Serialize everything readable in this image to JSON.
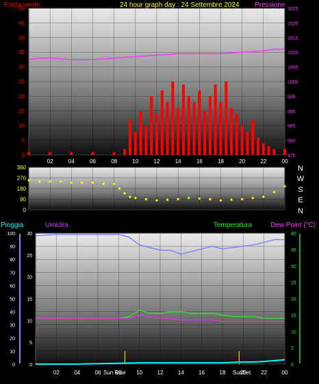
{
  "header": {
    "left_label": "Forza vento",
    "title": "24 hour graph day : 24 Settembre 2024",
    "right_label": "Pressione"
  },
  "colors": {
    "wind": "#ff0000",
    "gust_green": "#00cc00",
    "wind_white": "#ffffff",
    "pressure": "#ff33ff",
    "direction": "#ffff00",
    "humidity": "#7a86ff",
    "temperature": "#33dd33",
    "dewpoint": "#dd33dd",
    "rain": "#00ffff",
    "title_yellow": "#ffff00",
    "label_red": "#ff0000",
    "label_cyan": "#00ffff",
    "label_green": "#00ff00",
    "label_purple": "#cc33ff",
    "label_magenta": "#ff33ff"
  },
  "compass": [
    "N",
    "W",
    "S",
    "E",
    "N"
  ],
  "bottom_labels": {
    "rain": "Pioggia",
    "humidity": "Umidita",
    "temperature": "Temperatura",
    "dewpoint": "Dew Point (°C)"
  },
  "time_ticks": [
    "02",
    "04",
    "06",
    "08",
    "10",
    "12",
    "14",
    "16",
    "18",
    "20",
    "22",
    "00"
  ],
  "sun_labels": {
    "sunrise": "Sun Rise",
    "sunset": "SunSet"
  },
  "chart_data": [
    {
      "type": "line",
      "title": "24 hour graph day : 24 Settembre 2024",
      "x_axis": "hour of day",
      "series": [
        {
          "name": "Forza vento",
          "axis": "left",
          "x": [
            0,
            2,
            4,
            6,
            8,
            9,
            9.5,
            10,
            10.5,
            11,
            11.5,
            12,
            12.5,
            13,
            13.5,
            14,
            14.5,
            15,
            15.5,
            16,
            16.5,
            17,
            17.5,
            18,
            18.5,
            19,
            19.5,
            20,
            20.5,
            21,
            21.5,
            22,
            22.5,
            23,
            24
          ],
          "values": [
            1,
            1,
            1,
            1,
            1,
            2,
            12,
            8,
            15,
            10,
            20,
            14,
            22,
            18,
            25,
            16,
            24,
            20,
            18,
            22,
            15,
            20,
            24,
            18,
            25,
            16,
            14,
            10,
            8,
            12,
            6,
            4,
            3,
            2,
            2
          ]
        },
        {
          "name": "Pressione",
          "axis": "right",
          "x": [
            0,
            1,
            2,
            4,
            6,
            8,
            10,
            12,
            14,
            16,
            18,
            20,
            22,
            23,
            24
          ],
          "values": [
            1007.5,
            1008,
            1008,
            1007.5,
            1007.5,
            1008,
            1008.5,
            1009,
            1009.5,
            1009.5,
            1009.5,
            1010,
            1010.5,
            1011,
            1011
          ]
        }
      ],
      "y_left": {
        "ticks": [
          0,
          5,
          10,
          15,
          20,
          25,
          30,
          35,
          40,
          45,
          50
        ],
        "range": [
          0,
          50
        ]
      },
      "y_right": {
        "ticks": [
          975,
          980,
          985,
          990,
          995,
          1000,
          1005,
          1010,
          1015,
          1020,
          1025
        ],
        "range": [
          975,
          1025
        ]
      }
    },
    {
      "type": "scatter",
      "series": [
        {
          "x": [
            0,
            1,
            2,
            3,
            4,
            5,
            6,
            7,
            8,
            8.5,
            9,
            9.5,
            10,
            11,
            12,
            13,
            14,
            15,
            16,
            17,
            18,
            19,
            20,
            21,
            22,
            23,
            24
          ],
          "values": [
            250,
            240,
            240,
            240,
            230,
            230,
            230,
            220,
            220,
            180,
            140,
            110,
            100,
            90,
            80,
            85,
            90,
            100,
            95,
            90,
            80,
            85,
            90,
            100,
            110,
            150,
            200
          ]
        }
      ],
      "y_ticks": [
        0,
        90,
        180,
        270,
        360
      ],
      "range": [
        0,
        360
      ]
    },
    {
      "type": "line",
      "series": [
        {
          "name": "Umidita",
          "axis": "left_percent",
          "x": [
            0,
            2,
            4,
            6,
            8,
            9,
            10,
            11,
            12,
            13,
            14,
            15,
            16,
            17,
            18,
            19,
            20,
            21,
            22,
            23,
            24
          ],
          "values": [
            98,
            99,
            99,
            99,
            99,
            97,
            91,
            89,
            87,
            87,
            84,
            86,
            88,
            90,
            88,
            89,
            90,
            91,
            93,
            95,
            95
          ]
        },
        {
          "name": "Temperatura",
          "axis": "right_celsius",
          "x": [
            0,
            2,
            4,
            6,
            8,
            9,
            10,
            11,
            12,
            13,
            14,
            15,
            16,
            17,
            18,
            19,
            20,
            21,
            22,
            23,
            24
          ],
          "values": [
            14,
            14,
            14,
            14,
            14,
            14.5,
            16.5,
            15.5,
            15.5,
            16,
            16,
            15.5,
            15.5,
            15.5,
            15,
            14.5,
            14.5,
            14.5,
            14,
            14,
            14
          ]
        },
        {
          "name": "Dew Point (°C)",
          "axis": "right_celsius",
          "x": [
            0,
            2,
            4,
            6,
            8,
            9,
            10,
            11,
            12,
            13,
            14,
            15,
            16,
            17,
            18,
            19,
            20,
            21,
            22,
            23,
            24
          ],
          "values": [
            14,
            14,
            14,
            14,
            14,
            14,
            15,
            14.5,
            14,
            14,
            13.5,
            13.5,
            13.5,
            13.5,
            13,
            13,
            13,
            13,
            13,
            13,
            13
          ]
        },
        {
          "name": "Pioggia",
          "axis": "left_mm",
          "x": [
            0,
            4,
            8,
            10,
            12,
            14,
            16,
            18,
            20,
            21,
            22,
            23,
            24
          ],
          "values": [
            0,
            0,
            0.2,
            0.3,
            0.3,
            0.3,
            0.3,
            0.3,
            0.5,
            0.5,
            0.6,
            0.8,
            1.0
          ]
        }
      ],
      "y_left_percent": {
        "ticks": [
          0,
          10,
          20,
          30,
          40,
          50,
          60,
          70,
          80,
          90,
          100
        ],
        "range": [
          0,
          100
        ]
      },
      "y_left_mm": {
        "ticks": [
          0,
          5,
          10,
          15,
          20,
          25,
          30
        ],
        "range": [
          0,
          30
        ]
      },
      "y_right_celsius": {
        "ticks": [
          0,
          5,
          10,
          15,
          20,
          25,
          30,
          35,
          40
        ],
        "range": [
          0,
          40
        ]
      },
      "sun_events": [
        8.6,
        19.6
      ]
    }
  ]
}
